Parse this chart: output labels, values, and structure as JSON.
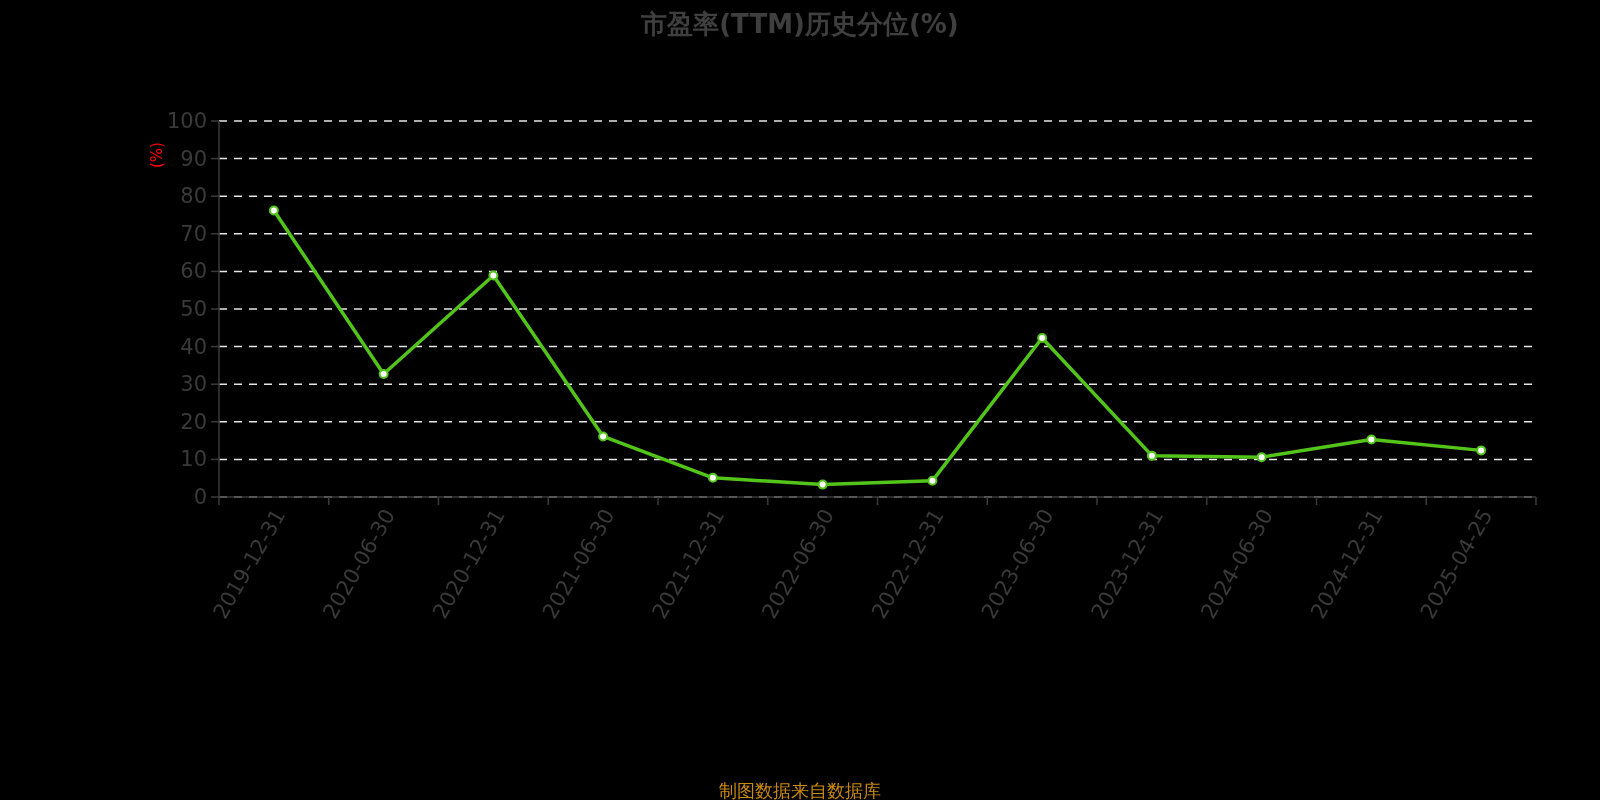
{
  "chart_data": {
    "type": "line",
    "title": "市盈率(TTM)历史分位(%)",
    "ylabel": "(%)",
    "categories": [
      "2019-12-31",
      "2020-06-30",
      "2020-12-31",
      "2021-06-30",
      "2021-12-31",
      "2022-06-30",
      "2022-12-31",
      "2023-06-30",
      "2023-12-31",
      "2024-06-30",
      "2024-12-31",
      "2025-04-25"
    ],
    "series": [
      {
        "color": "#52c41a",
        "values": [
          76.2,
          32.7,
          58.9,
          16.1,
          5.1,
          3.3,
          4.3,
          42.3,
          11.0,
          10.6,
          15.3,
          12.4
        ]
      }
    ],
    "ylim": [
      0,
      100
    ],
    "yticks": [
      0,
      10,
      20,
      30,
      40,
      50,
      60,
      70,
      80,
      90,
      100
    ],
    "grid": "y",
    "marker": "circle",
    "annotations": [
      "制图数据来自数据库"
    ]
  }
}
